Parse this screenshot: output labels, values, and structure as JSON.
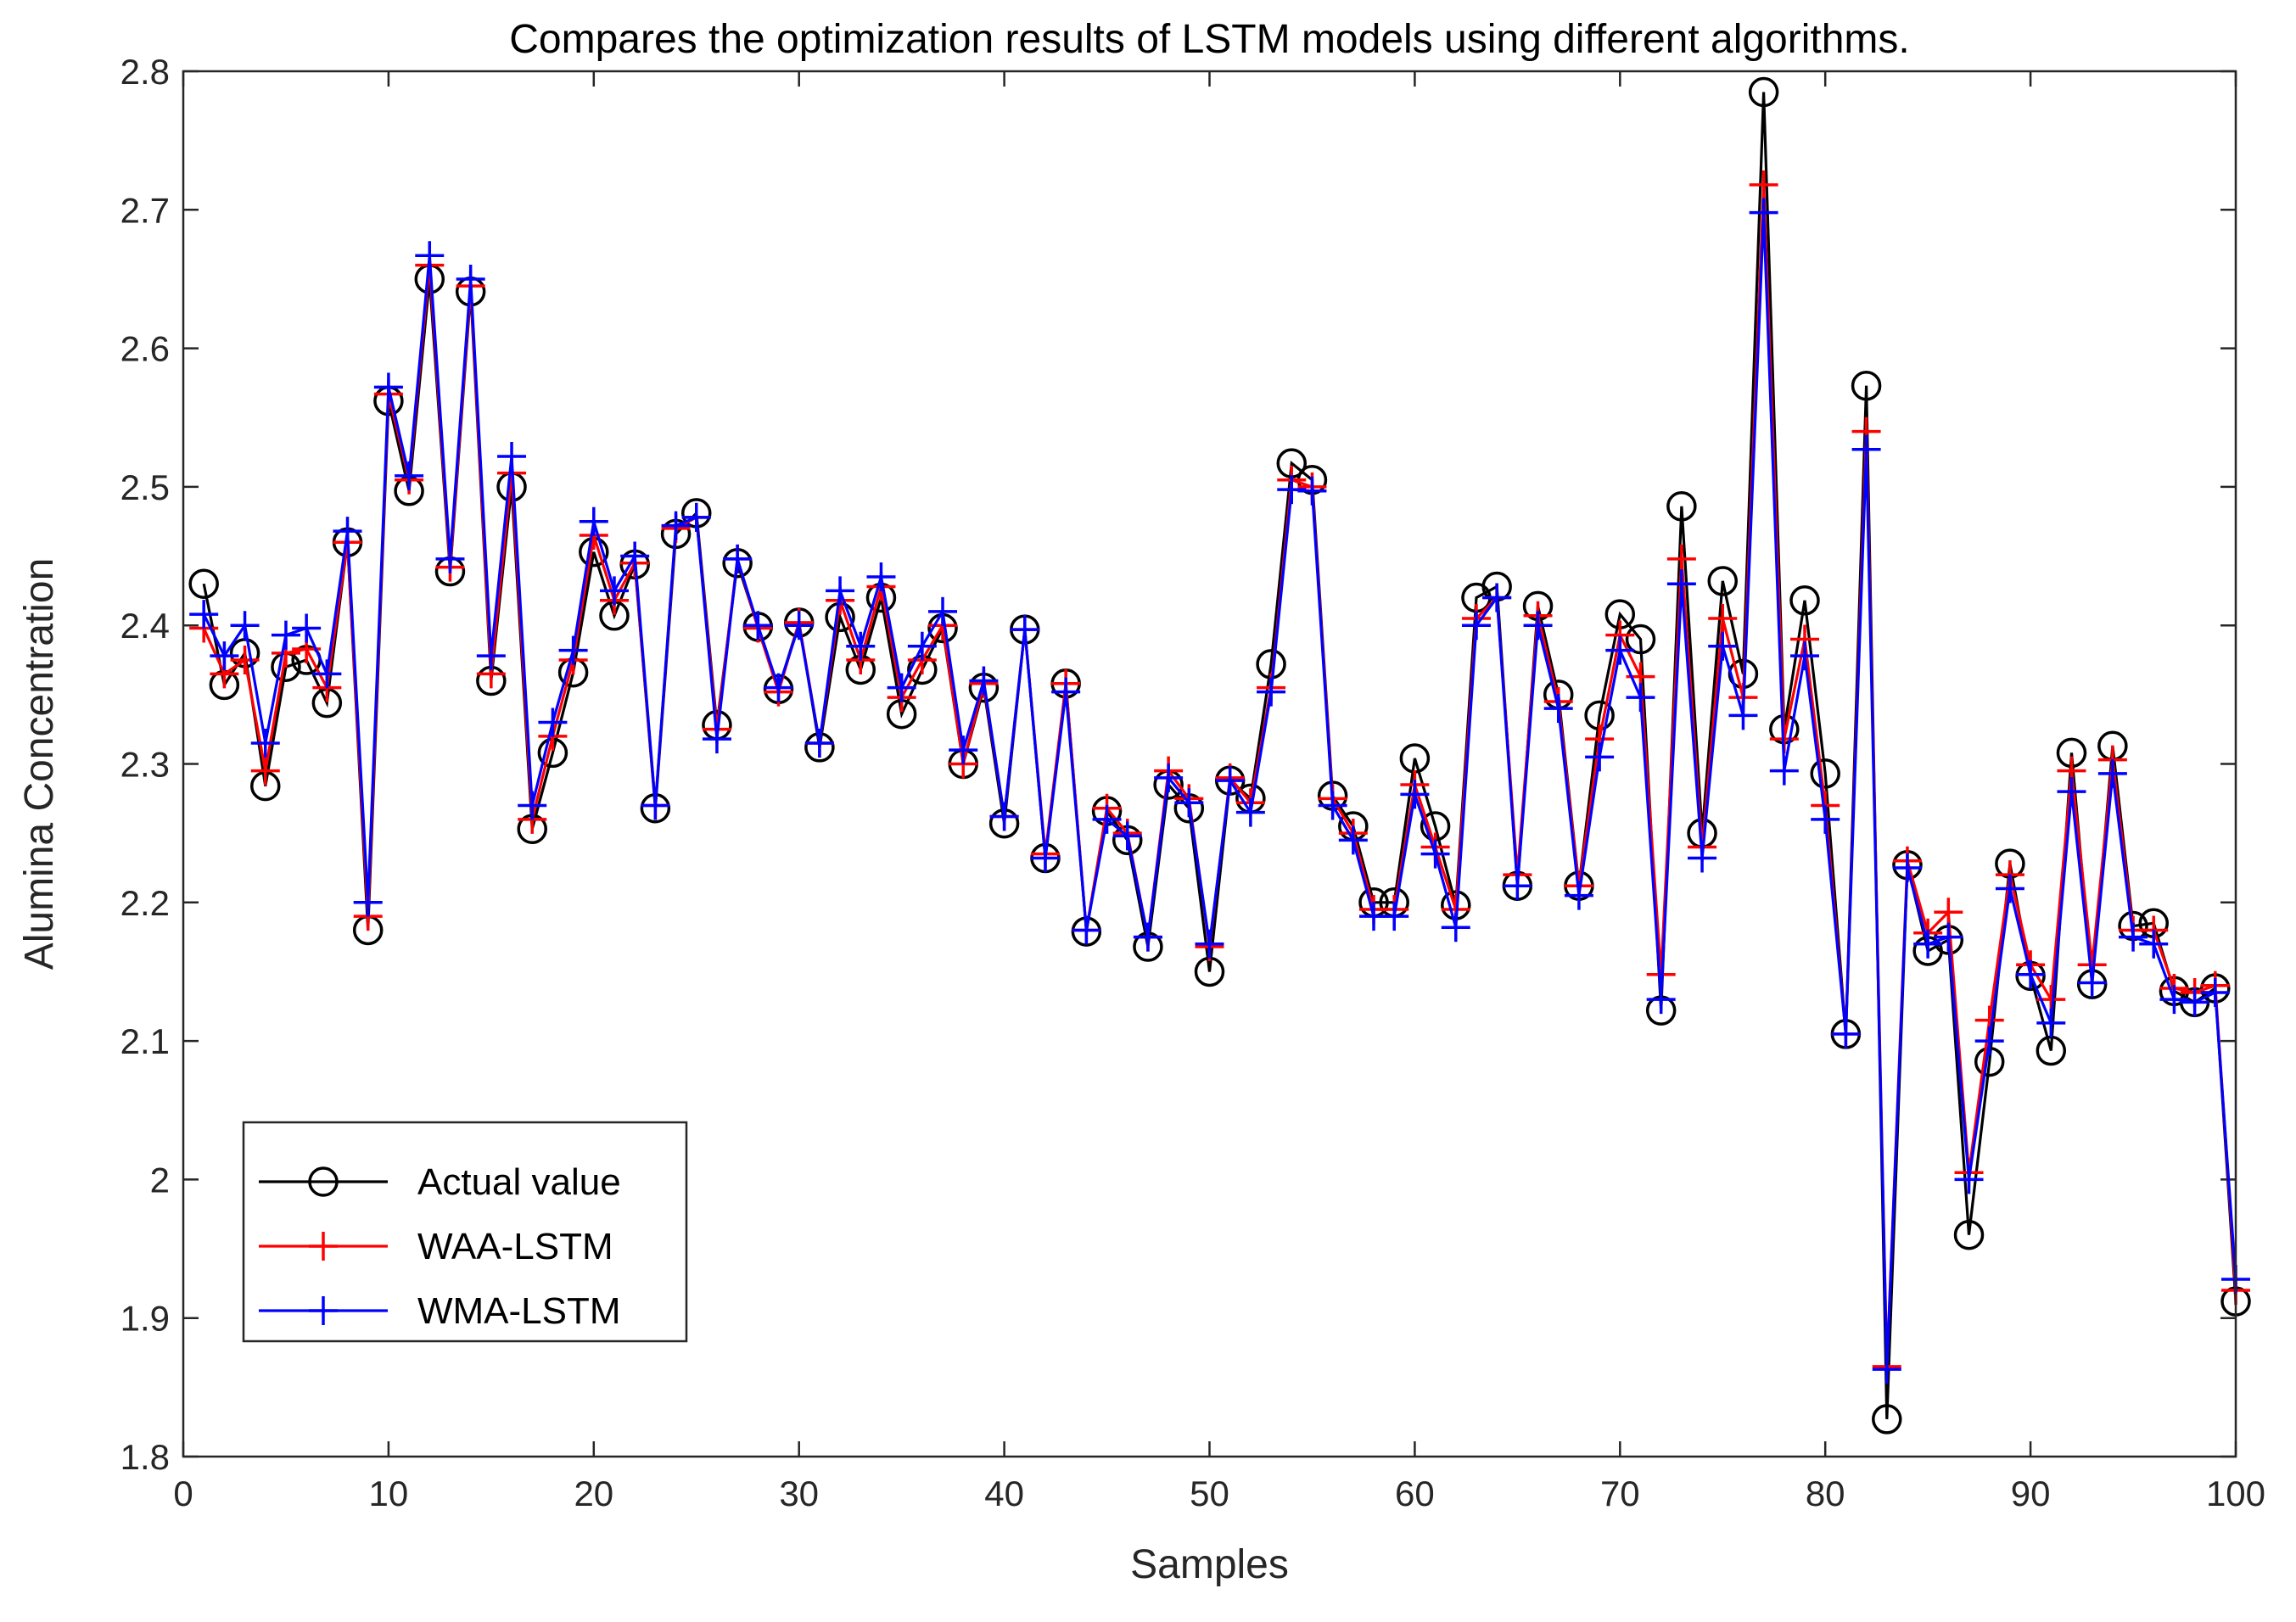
{
  "chart_data": {
    "type": "line",
    "title": "Compares the optimization results of LSTM models using different algorithms.",
    "xlabel": "Samples",
    "ylabel": "Alumina Concentration",
    "xlim": [
      0,
      100
    ],
    "ylim": [
      1.8,
      2.8
    ],
    "xticks": [
      "0",
      "10",
      "20",
      "30",
      "40",
      "50",
      "60",
      "70",
      "80",
      "90",
      "100"
    ],
    "yticks": [
      "1.8",
      "1.9",
      "2",
      "2.1",
      "2.2",
      "2.3",
      "2.4",
      "2.5",
      "2.6",
      "2.7",
      "2.8"
    ],
    "grid": false,
    "legend_position": "bottom-left",
    "x": [
      1,
      2,
      3,
      4,
      5,
      6,
      7,
      8,
      9,
      10,
      11,
      12,
      13,
      14,
      15,
      16,
      17,
      18,
      19,
      20,
      21,
      22,
      23,
      24,
      25,
      26,
      27,
      28,
      29,
      30,
      31,
      32,
      33,
      34,
      35,
      36,
      37,
      38,
      39,
      40,
      41,
      42,
      43,
      44,
      45,
      46,
      47,
      48,
      49,
      50,
      51,
      52,
      53,
      54,
      55,
      56,
      57,
      58,
      59,
      60,
      61,
      62,
      63,
      64,
      65,
      66,
      67,
      68,
      69,
      70,
      71,
      72,
      73,
      74,
      75,
      76,
      77,
      78,
      79,
      80,
      81,
      82,
      83,
      84,
      85,
      86,
      87,
      88,
      89,
      90,
      91,
      92,
      93,
      94,
      95,
      96,
      97,
      98,
      99,
      100
    ],
    "series": [
      {
        "name": "Actual value",
        "color": "#000000",
        "marker": "circle",
        "values": [
          2.43,
          2.357,
          2.38,
          2.284,
          2.37,
          2.375,
          2.344,
          2.46,
          2.18,
          2.562,
          2.497,
          2.65,
          2.439,
          2.641,
          2.36,
          2.5,
          2.253,
          2.308,
          2.366,
          2.453,
          2.407,
          2.444,
          2.268,
          2.466,
          2.481,
          2.328,
          2.445,
          2.399,
          2.354,
          2.402,
          2.312,
          2.406,
          2.368,
          2.42,
          2.336,
          2.368,
          2.398,
          2.3,
          2.355,
          2.257,
          2.397,
          2.232,
          2.358,
          2.179,
          2.266,
          2.245,
          2.168,
          2.285,
          2.268,
          2.15,
          2.288,
          2.275,
          2.372,
          2.517,
          2.505,
          2.277,
          2.255,
          2.2,
          2.2,
          2.304,
          2.255,
          2.198,
          2.42,
          2.428,
          2.212,
          2.414,
          2.35,
          2.212,
          2.335,
          2.408,
          2.39,
          2.122,
          2.486,
          2.25,
          2.432,
          2.365,
          2.785,
          2.325,
          2.418,
          2.293,
          2.105,
          2.573,
          1.827,
          2.227,
          2.165,
          2.173,
          1.96,
          2.085,
          2.228,
          2.147,
          2.093,
          2.308,
          2.141,
          2.313,
          2.183,
          2.185,
          2.136,
          2.128,
          2.138,
          1.912
        ]
      },
      {
        "name": "WAA-LSTM",
        "color": "#ff0000",
        "marker": "plus",
        "values": [
          2.398,
          2.365,
          2.375,
          2.295,
          2.38,
          2.383,
          2.355,
          2.46,
          2.19,
          2.567,
          2.505,
          2.66,
          2.442,
          2.645,
          2.365,
          2.51,
          2.26,
          2.32,
          2.375,
          2.465,
          2.418,
          2.445,
          2.27,
          2.47,
          2.478,
          2.325,
          2.448,
          2.398,
          2.352,
          2.402,
          2.315,
          2.418,
          2.375,
          2.428,
          2.348,
          2.375,
          2.4,
          2.3,
          2.358,
          2.262,
          2.397,
          2.235,
          2.358,
          2.18,
          2.268,
          2.25,
          2.175,
          2.295,
          2.275,
          2.168,
          2.29,
          2.272,
          2.355,
          2.505,
          2.5,
          2.275,
          2.25,
          2.195,
          2.195,
          2.285,
          2.24,
          2.195,
          2.405,
          2.42,
          2.22,
          2.407,
          2.345,
          2.212,
          2.318,
          2.393,
          2.363,
          2.148,
          2.448,
          2.24,
          2.405,
          2.348,
          2.718,
          2.318,
          2.39,
          2.27,
          2.105,
          2.54,
          1.865,
          2.23,
          2.178,
          2.193,
          2.005,
          2.115,
          2.22,
          2.155,
          2.13,
          2.295,
          2.155,
          2.303,
          2.18,
          2.18,
          2.138,
          2.135,
          2.14,
          1.92
        ]
      },
      {
        "name": "WMA-LSTM",
        "color": "#0000ff",
        "marker": "plus",
        "values": [
          2.408,
          2.378,
          2.4,
          2.315,
          2.393,
          2.398,
          2.365,
          2.468,
          2.2,
          2.572,
          2.508,
          2.667,
          2.448,
          2.65,
          2.378,
          2.522,
          2.27,
          2.33,
          2.382,
          2.475,
          2.425,
          2.45,
          2.27,
          2.472,
          2.478,
          2.318,
          2.448,
          2.4,
          2.355,
          2.4,
          2.315,
          2.425,
          2.385,
          2.435,
          2.355,
          2.385,
          2.41,
          2.31,
          2.36,
          2.262,
          2.397,
          2.232,
          2.352,
          2.18,
          2.26,
          2.248,
          2.175,
          2.29,
          2.272,
          2.17,
          2.288,
          2.265,
          2.352,
          2.498,
          2.497,
          2.27,
          2.245,
          2.19,
          2.19,
          2.278,
          2.235,
          2.182,
          2.4,
          2.42,
          2.212,
          2.4,
          2.34,
          2.205,
          2.305,
          2.382,
          2.348,
          2.13,
          2.43,
          2.232,
          2.385,
          2.335,
          2.698,
          2.295,
          2.378,
          2.26,
          2.105,
          2.527,
          1.863,
          2.225,
          2.17,
          2.175,
          2.0,
          2.1,
          2.21,
          2.148,
          2.113,
          2.28,
          2.142,
          2.293,
          2.175,
          2.17,
          2.13,
          2.128,
          2.135,
          1.928
        ]
      }
    ]
  }
}
